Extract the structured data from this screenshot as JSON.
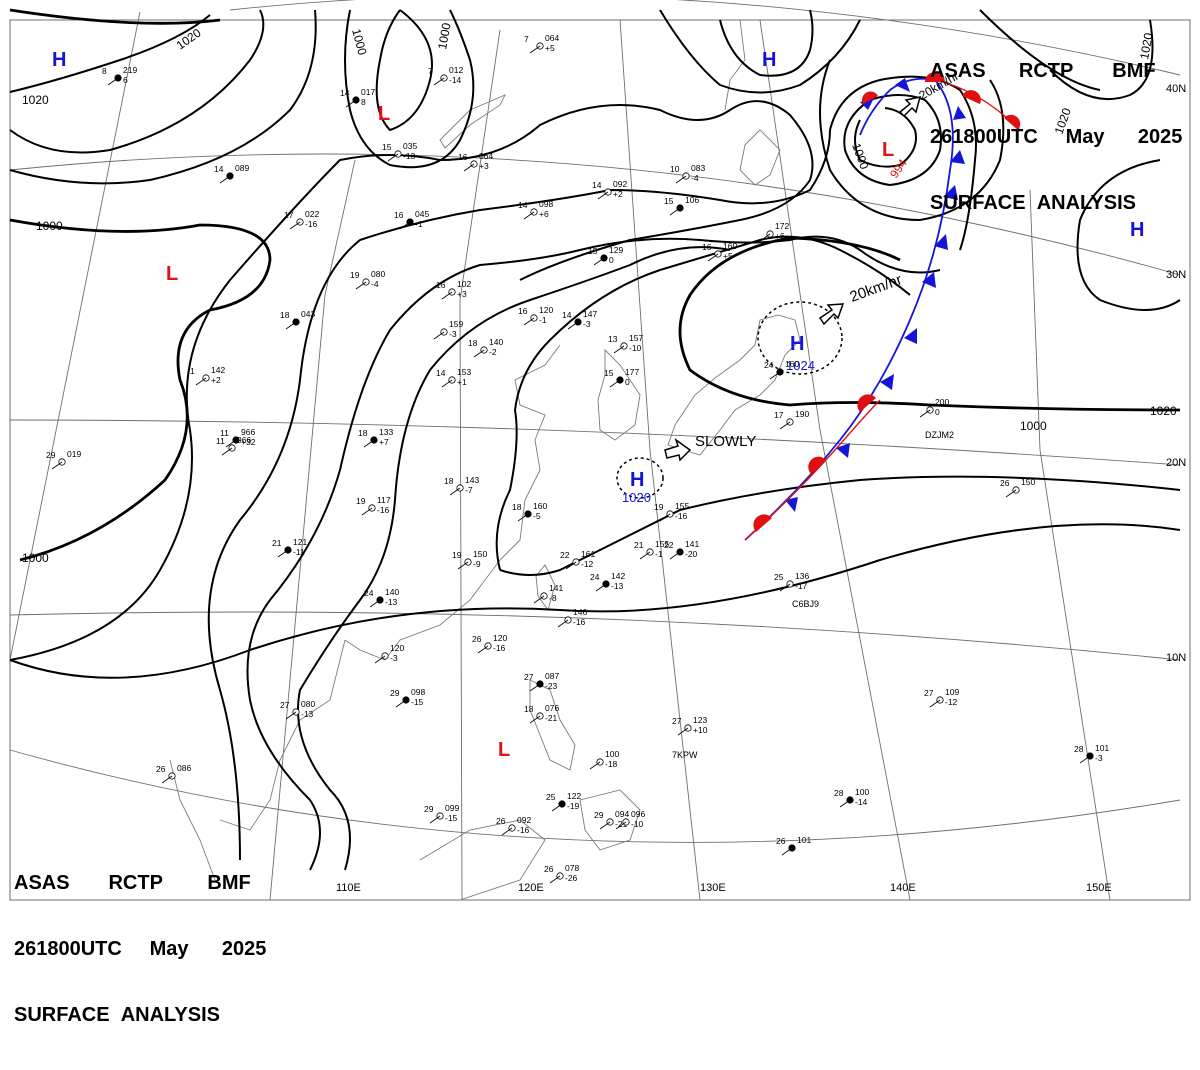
{
  "header": {
    "lines": [
      [
        "ASAS",
        "RCTP",
        "BMF"
      ],
      [
        "261800UTC",
        "May",
        "2025"
      ],
      [
        "SURFACE",
        "ANALYSIS"
      ]
    ]
  },
  "footer": {
    "lines": [
      [
        "ASAS",
        "RCTP",
        "BMF"
      ],
      [
        "261800UTC",
        "May",
        "2025"
      ],
      [
        "SURFACE",
        "ANALYSIS"
      ]
    ]
  },
  "colors": {
    "isobar": "#000000",
    "grid": "#6f6f6f",
    "coast": "#7a7a7a",
    "high": "#1515d8",
    "low": "#e01010",
    "cold_front": "#1515d8",
    "warm_front": "#e01010"
  },
  "lon_labels": [
    "110E",
    "120E",
    "130E",
    "140E",
    "150E"
  ],
  "lat_labels": [
    "40N",
    "30N",
    "20N",
    "10N"
  ],
  "isobars": {
    "labels": [
      "1020",
      "1020",
      "1000",
      "1000",
      "1000",
      "1020",
      "1000",
      "1020",
      "1020",
      "1000",
      "1000"
    ]
  },
  "pressure_centers": [
    {
      "type": "H",
      "value": ""
    },
    {
      "type": "L",
      "value": ""
    },
    {
      "type": "L",
      "value": ""
    },
    {
      "type": "L",
      "value": "994"
    },
    {
      "type": "H",
      "value": ""
    },
    {
      "type": "H",
      "value": ""
    },
    {
      "type": "H",
      "value": "1024"
    },
    {
      "type": "H",
      "value": "1020"
    },
    {
      "type": "L",
      "value": ""
    }
  ],
  "motions": [
    {
      "text": "20km/hr"
    },
    {
      "text": "SLOWLY"
    },
    {
      "text": "20km/hr"
    }
  ],
  "stations": [
    {
      "t": "8",
      "p": "219",
      "tend": "6"
    },
    {
      "t": "7",
      "p": "064",
      "tend": "+5"
    },
    {
      "t": "7",
      "p": "012",
      "tend": "-14"
    },
    {
      "t": "14",
      "p": "017",
      "tend": "8"
    },
    {
      "t": "15",
      "p": "035",
      "tend": "-13"
    },
    {
      "t": "16",
      "p": "064",
      "tend": "+3"
    },
    {
      "t": "14",
      "p": "089",
      "tend": ""
    },
    {
      "t": "14",
      "p": "092",
      "tend": "+2"
    },
    {
      "t": "14",
      "p": "098",
      "tend": "+6"
    },
    {
      "t": "15",
      "p": "106",
      "tend": ""
    },
    {
      "t": "10",
      "p": "083",
      "tend": "-4"
    },
    {
      "t": "17",
      "p": "022",
      "tend": "-16"
    },
    {
      "t": "16",
      "p": "045",
      "tend": "-1"
    },
    {
      "t": "19",
      "p": "080",
      "tend": "-4"
    },
    {
      "t": "16",
      "p": "102",
      "tend": "+3"
    },
    {
      "t": "15",
      "p": "129",
      "tend": "0"
    },
    {
      "t": "16",
      "p": "160",
      "tend": "+5"
    },
    {
      "t": "",
      "p": "172",
      "tend": "+6"
    },
    {
      "t": "18",
      "p": "043",
      "tend": ""
    },
    {
      "t": "",
      "p": "159",
      "tend": "-3"
    },
    {
      "t": "16",
      "p": "120",
      "tend": "-1"
    },
    {
      "t": "14",
      "p": "147",
      "tend": "-3"
    },
    {
      "t": "18",
      "p": "140",
      "tend": "-2"
    },
    {
      "t": "13",
      "p": "157",
      "tend": "-10"
    },
    {
      "t": "15",
      "p": "177",
      "tend": "0"
    },
    {
      "t": "1",
      "p": "142",
      "tend": "+2"
    },
    {
      "t": "14",
      "p": "153",
      "tend": "+1"
    },
    {
      "t": "11",
      "p": "966",
      "tend": "+32"
    },
    {
      "t": "11",
      "p": "966",
      "tend": ""
    },
    {
      "t": "29",
      "p": "019",
      "tend": ""
    },
    {
      "t": "18",
      "p": "133",
      "tend": "+7"
    },
    {
      "t": "18",
      "p": "143",
      "tend": "-7"
    },
    {
      "t": "19",
      "p": "117",
      "tend": "-16"
    },
    {
      "t": "18",
      "p": "160",
      "tend": "-5"
    },
    {
      "t": "19",
      "p": "155",
      "tend": "-16"
    },
    {
      "t": "21",
      "p": "155",
      "tend": "-1"
    },
    {
      "t": "22",
      "p": "141",
      "tend": "-20"
    },
    {
      "t": "17",
      "p": "190",
      "tend": ""
    },
    {
      "t": "",
      "p": "200",
      "tend": "0"
    },
    {
      "t": "21",
      "p": "121",
      "tend": "-11"
    },
    {
      "t": "19",
      "p": "150",
      "tend": "-9"
    },
    {
      "t": "22",
      "p": "161",
      "tend": "-12"
    },
    {
      "t": "24",
      "p": "142",
      "tend": "-13"
    },
    {
      "t": "",
      "p": "141",
      "tend": "-8"
    },
    {
      "t": "",
      "p": "146",
      "tend": "-16"
    },
    {
      "t": "24",
      "p": "160",
      "tend": ""
    },
    {
      "t": "26",
      "p": "150",
      "tend": ""
    },
    {
      "t": "25",
      "p": "136",
      "tend": "-17"
    },
    {
      "t": "24",
      "p": "140",
      "tend": "-13"
    },
    {
      "t": "",
      "p": "120",
      "tend": "-3"
    },
    {
      "t": "26",
      "p": "120",
      "tend": "-16"
    },
    {
      "t": "27",
      "p": "087",
      "tend": "-23"
    },
    {
      "t": "18",
      "p": "076",
      "tend": "-21"
    },
    {
      "t": "27",
      "p": "080",
      "tend": "-13"
    },
    {
      "t": "29",
      "p": "098",
      "tend": "-15"
    },
    {
      "t": "27",
      "p": "123",
      "tend": "+10"
    },
    {
      "t": "27",
      "p": "109",
      "tend": "-12"
    },
    {
      "t": "28",
      "p": "101",
      "tend": "-3"
    },
    {
      "t": "26",
      "p": "086",
      "tend": ""
    },
    {
      "t": "",
      "p": "100",
      "tend": "-18"
    },
    {
      "t": "28",
      "p": "100",
      "tend": "-14"
    },
    {
      "t": "29",
      "p": "099",
      "tend": "-15"
    },
    {
      "t": "26",
      "p": "092",
      "tend": "-16"
    },
    {
      "t": "25",
      "p": "122",
      "tend": "-19"
    },
    {
      "t": "29",
      "p": "094",
      "tend": "-21"
    },
    {
      "t": "",
      "p": "096",
      "tend": "-10"
    },
    {
      "t": "26",
      "p": "101",
      "tend": ""
    },
    {
      "t": "26",
      "p": "078",
      "tend": "-26"
    }
  ],
  "ship_ids": [
    "C6BJ9",
    "7KPW",
    "DZJM2"
  ]
}
